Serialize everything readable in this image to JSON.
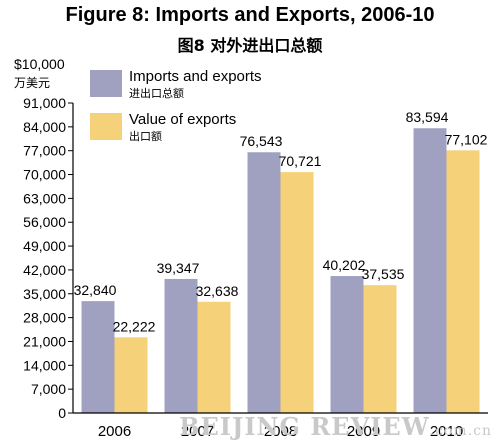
{
  "title": "Figure 8: Imports and Exports, 2006-10",
  "subtitle": "图8 对外进出口总额",
  "unit_en": "$10,000",
  "unit_cn": "万美元",
  "watermark": "BEIJING REVIEW",
  "watermark_domain": ".com.cn",
  "colors": {
    "imports": "#a0a0c0",
    "exports": "#f5d27a"
  },
  "chart_data": {
    "type": "bar",
    "categories": [
      "2006",
      "2007",
      "2008",
      "2009",
      "2010"
    ],
    "series": [
      {
        "name": "Imports and exports",
        "name_cn": "进出口总额",
        "values": [
          32840,
          39347,
          76543,
          40202,
          83594
        ]
      },
      {
        "name": "Value of exports",
        "name_cn": "出口额",
        "values": [
          22222,
          32638,
          70721,
          37535,
          77102
        ]
      }
    ],
    "ylim": [
      0,
      91000
    ],
    "yticks": [
      0,
      7000,
      14000,
      21000,
      28000,
      35000,
      42000,
      49000,
      56000,
      63000,
      70000,
      77000,
      84000,
      91000
    ],
    "legend_position": "top-left",
    "grid": false
  }
}
